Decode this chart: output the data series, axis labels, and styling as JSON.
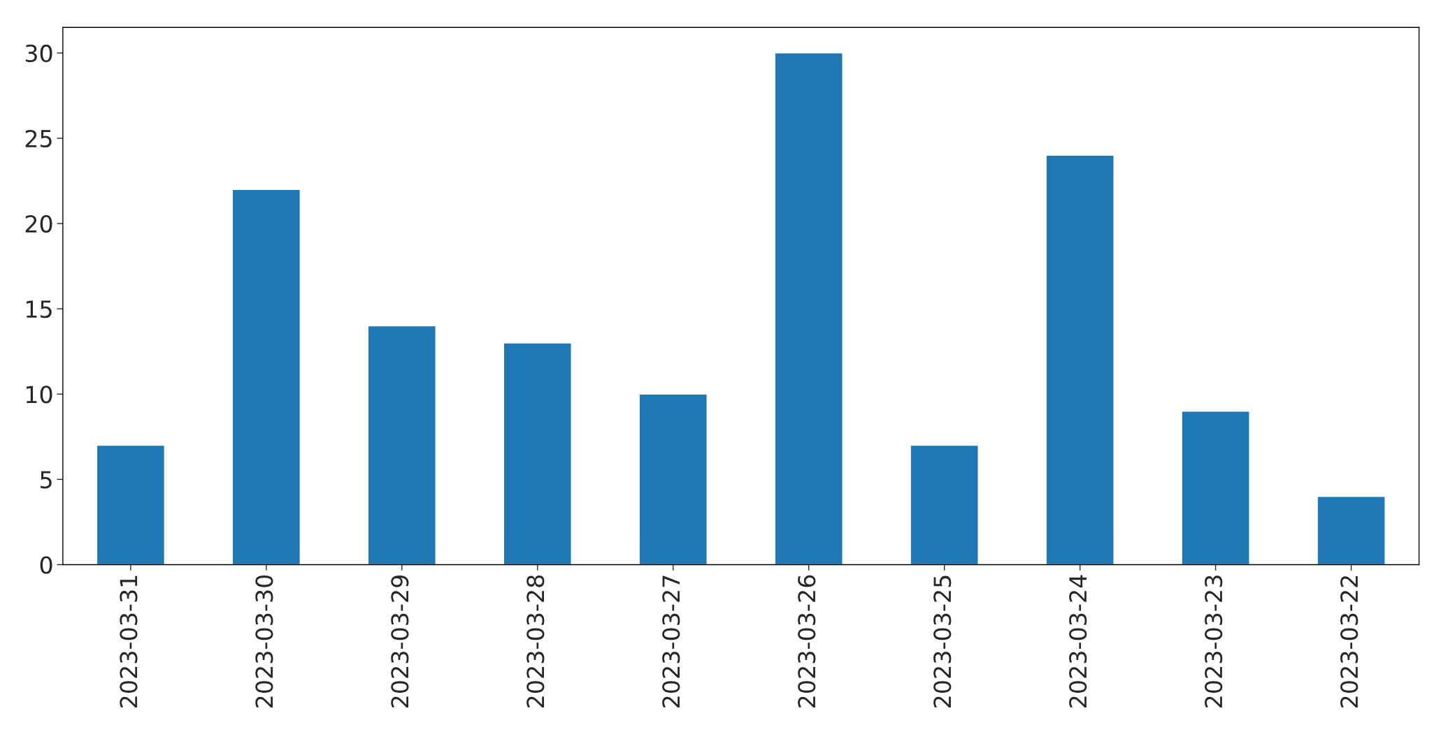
{
  "chart_data": {
    "type": "bar",
    "categories": [
      "2023-03-31",
      "2023-03-30",
      "2023-03-29",
      "2023-03-28",
      "2023-03-27",
      "2023-03-26",
      "2023-03-25",
      "2023-03-24",
      "2023-03-23",
      "2023-03-22"
    ],
    "values": [
      7,
      22,
      14,
      13,
      10,
      30,
      7,
      24,
      9,
      4
    ],
    "color": "#1f77b4",
    "ylim": [
      0,
      31.5
    ],
    "yticks": [
      0,
      5,
      10,
      15,
      20,
      25,
      30
    ],
    "grid": false,
    "legend": false
  }
}
